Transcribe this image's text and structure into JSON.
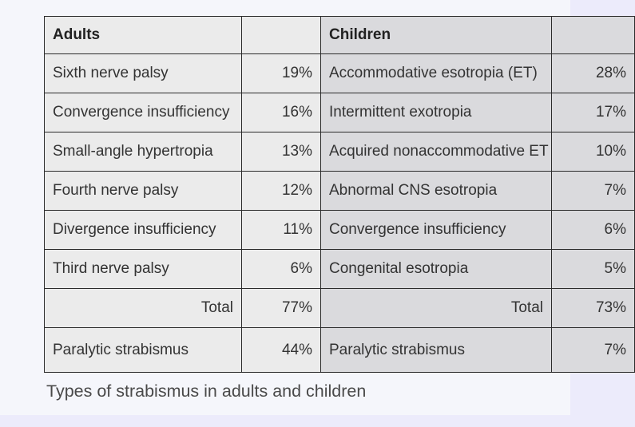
{
  "table": {
    "header": {
      "adults": "Adults",
      "adults_pct": "",
      "children": "Children",
      "children_pct": ""
    },
    "rows": [
      {
        "adult": "Sixth nerve palsy",
        "adult_pct": "19%",
        "child": "Accommodative esotropia (ET)",
        "child_pct": "28%"
      },
      {
        "adult": "Convergence insufficiency",
        "adult_pct": "16%",
        "child": "Intermittent exotropia",
        "child_pct": "17%"
      },
      {
        "adult": "Small-angle hypertropia",
        "adult_pct": "13%",
        "child": "Acquired nonaccommodative ET",
        "child_pct": "10%"
      },
      {
        "adult": "Fourth nerve palsy",
        "adult_pct": "12%",
        "child": "Abnormal CNS esotropia",
        "child_pct": "7%"
      },
      {
        "adult": "Divergence insufficiency",
        "adult_pct": "11%",
        "child": "Convergence insufficiency",
        "child_pct": "6%"
      },
      {
        "adult": "Third nerve palsy",
        "adult_pct": "6%",
        "child": "Congenital esotropia",
        "child_pct": "5%"
      }
    ],
    "total": {
      "adult_label": "Total",
      "adult_pct": "77%",
      "child_label": "Total",
      "child_pct": "73%"
    },
    "paralytic": {
      "adult": "Paralytic strabismus",
      "adult_pct": "44%",
      "child": "Paralytic strabismus",
      "child_pct": "7%"
    }
  },
  "caption": "Types of strabismus in adults and children"
}
